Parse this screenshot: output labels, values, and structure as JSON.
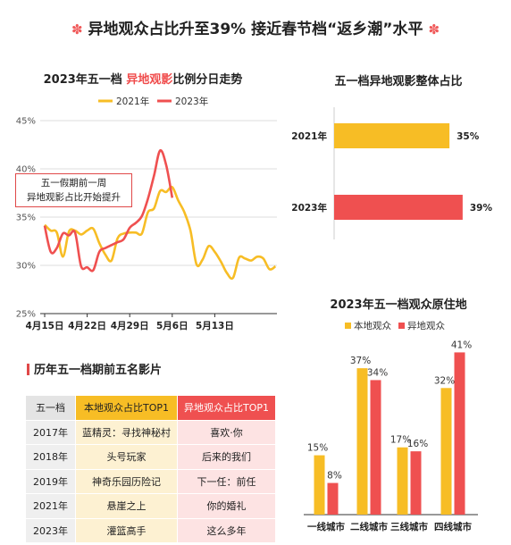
{
  "title": "异地观众占比升至39% 接近春节档“返乡潮”水平",
  "flower_icon": "✽",
  "colors": {
    "yellow": "#f7bd25",
    "red": "#ef5050",
    "grid": "#dddddd"
  },
  "chart_data": [
    {
      "type": "line",
      "title_prefix": "2023年五一档 ",
      "title_highlight": "异地观影",
      "title_suffix": "比例分日走势",
      "y_ticks": [
        "45%",
        "40%",
        "35%",
        "30%",
        "25%"
      ],
      "ylim": [
        25,
        45
      ],
      "x_ticks": [
        "4月15日",
        "4月22日",
        "4月29日",
        "5月6日",
        "5月13日"
      ],
      "annotation_line1": "五一假期前一周",
      "annotation_line2": "异地观影占比开始提升",
      "series": [
        {
          "name": "2021年",
          "color": "#f7bd25",
          "start_day": 0,
          "values": [
            34.2,
            33.6,
            33.4,
            30.9,
            33.5,
            33.6,
            33.2,
            33.6,
            33.8,
            32.3,
            31.1,
            30.5,
            32.8,
            33.3,
            33.4,
            33.4,
            33.3,
            35.5,
            35.9,
            37.7,
            37.6,
            38.1,
            36.7,
            35.5,
            33.6,
            30.1,
            30.6,
            32.0,
            31.4,
            30.4,
            29.2,
            28.7,
            30.8,
            30.7,
            30.5,
            30.9,
            30.7,
            29.6,
            29.9
          ]
        },
        {
          "name": "2023年",
          "color": "#ef5050",
          "start_day": 0,
          "values": [
            34.1,
            31.4,
            31.8,
            33.3,
            33.1,
            33.4,
            29.9,
            29.8,
            29.5,
            31.4,
            31.8,
            32.1,
            32.4,
            32.7,
            33.9,
            34.4,
            35.1,
            36.9,
            39.3,
            41.9,
            40.4,
            37.0
          ]
        }
      ]
    },
    {
      "type": "bar",
      "orientation": "horizontal",
      "title": "五一档异地观影整体占比",
      "categories": [
        "2021年",
        "2023年"
      ],
      "values": [
        35,
        39
      ],
      "labels": [
        "35%",
        "39%"
      ],
      "colors": [
        "#f7bd25",
        "#ef5050"
      ]
    },
    {
      "type": "bar",
      "title": "2023年五一档观众原住地",
      "categories": [
        "一线城市",
        "二线城市",
        "三线城市",
        "四线城市"
      ],
      "series": [
        {
          "name": "本地观众",
          "color": "#f7bd25",
          "values": [
            15,
            37,
            17,
            32
          ],
          "labels": [
            "15%",
            "37%",
            "17%",
            "32%"
          ]
        },
        {
          "name": "异地观众",
          "color": "#ef5050",
          "values": [
            8,
            34,
            16,
            41
          ],
          "labels": [
            "8%",
            "34%",
            "16%",
            "41%"
          ]
        }
      ]
    }
  ],
  "table": {
    "title": "历年五一档期前五名影片",
    "headers": [
      "五一档",
      "本地观众占比TOP1",
      "异地观众占比TOP1"
    ],
    "rows": [
      [
        "2017年",
        "蓝精灵：寻找神秘村",
        "喜欢·你"
      ],
      [
        "2018年",
        "头号玩家",
        "后来的我们"
      ],
      [
        "2019年",
        "神奇乐园历险记",
        "下一任：前任"
      ],
      [
        "2021年",
        "悬崖之上",
        "你的婚礼"
      ],
      [
        "2023年",
        "灌篮高手",
        "这么多年"
      ]
    ]
  }
}
